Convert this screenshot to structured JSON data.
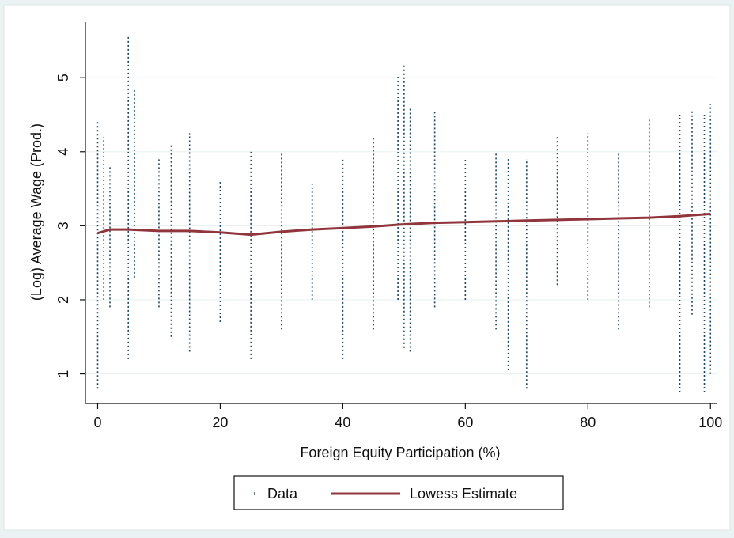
{
  "chart_data": {
    "type": "scatter",
    "title": "",
    "xlabel": "Foreign Equity Participation (%)",
    "ylabel": "(Log) Average Wage (Prod.)",
    "xlim": [
      -2,
      101
    ],
    "ylim": [
      0.6,
      5.75
    ],
    "xticks": [
      0,
      20,
      40,
      60,
      80,
      100
    ],
    "yticks": [
      1,
      2,
      3,
      4,
      5
    ],
    "grid": true,
    "legend_placement": "bottom",
    "colors": {
      "background": "#eaf2f3",
      "plot_background": "#ffffff",
      "gridline": "#e8efef",
      "data": "#1a476f",
      "lowess": "#90353b"
    },
    "series": [
      {
        "name": "Data",
        "kind": "scatter",
        "x_values": [
          0,
          1,
          2,
          5,
          6,
          10,
          12,
          15,
          20,
          25,
          30,
          35,
          40,
          45,
          49,
          50,
          51,
          55,
          60,
          65,
          67,
          70,
          75,
          80,
          85,
          90,
          95,
          97,
          99,
          100
        ],
        "ranges": [
          [
            0.8,
            4.4
          ],
          [
            2.0,
            4.2
          ],
          [
            1.9,
            3.8
          ],
          [
            1.2,
            5.55
          ],
          [
            2.3,
            4.85
          ],
          [
            1.9,
            3.9
          ],
          [
            1.5,
            4.1
          ],
          [
            1.3,
            4.25
          ],
          [
            1.7,
            3.6
          ],
          [
            1.2,
            4.0
          ],
          [
            1.6,
            4.0
          ],
          [
            2.0,
            3.6
          ],
          [
            1.2,
            3.9
          ],
          [
            1.6,
            4.2
          ],
          [
            2.0,
            5.05
          ],
          [
            1.35,
            5.2
          ],
          [
            1.3,
            4.6
          ],
          [
            1.9,
            4.55
          ],
          [
            2.0,
            3.9
          ],
          [
            1.6,
            4.0
          ],
          [
            1.05,
            3.9
          ],
          [
            0.8,
            3.9
          ],
          [
            2.2,
            4.2
          ],
          [
            2.0,
            4.25
          ],
          [
            1.6,
            4.0
          ],
          [
            1.9,
            4.45
          ],
          [
            0.75,
            4.5
          ],
          [
            1.8,
            4.55
          ],
          [
            0.75,
            4.5
          ],
          [
            1.0,
            4.65
          ]
        ]
      },
      {
        "name": "Lowess Estimate",
        "kind": "line",
        "x": [
          0,
          2,
          5,
          10,
          15,
          20,
          25,
          30,
          35,
          40,
          45,
          50,
          55,
          60,
          65,
          70,
          75,
          80,
          85,
          90,
          95,
          100
        ],
        "y": [
          2.9,
          2.95,
          2.95,
          2.93,
          2.93,
          2.91,
          2.88,
          2.92,
          2.95,
          2.97,
          2.99,
          3.02,
          3.04,
          3.05,
          3.06,
          3.07,
          3.08,
          3.09,
          3.1,
          3.11,
          3.13,
          3.16
        ]
      }
    ]
  }
}
